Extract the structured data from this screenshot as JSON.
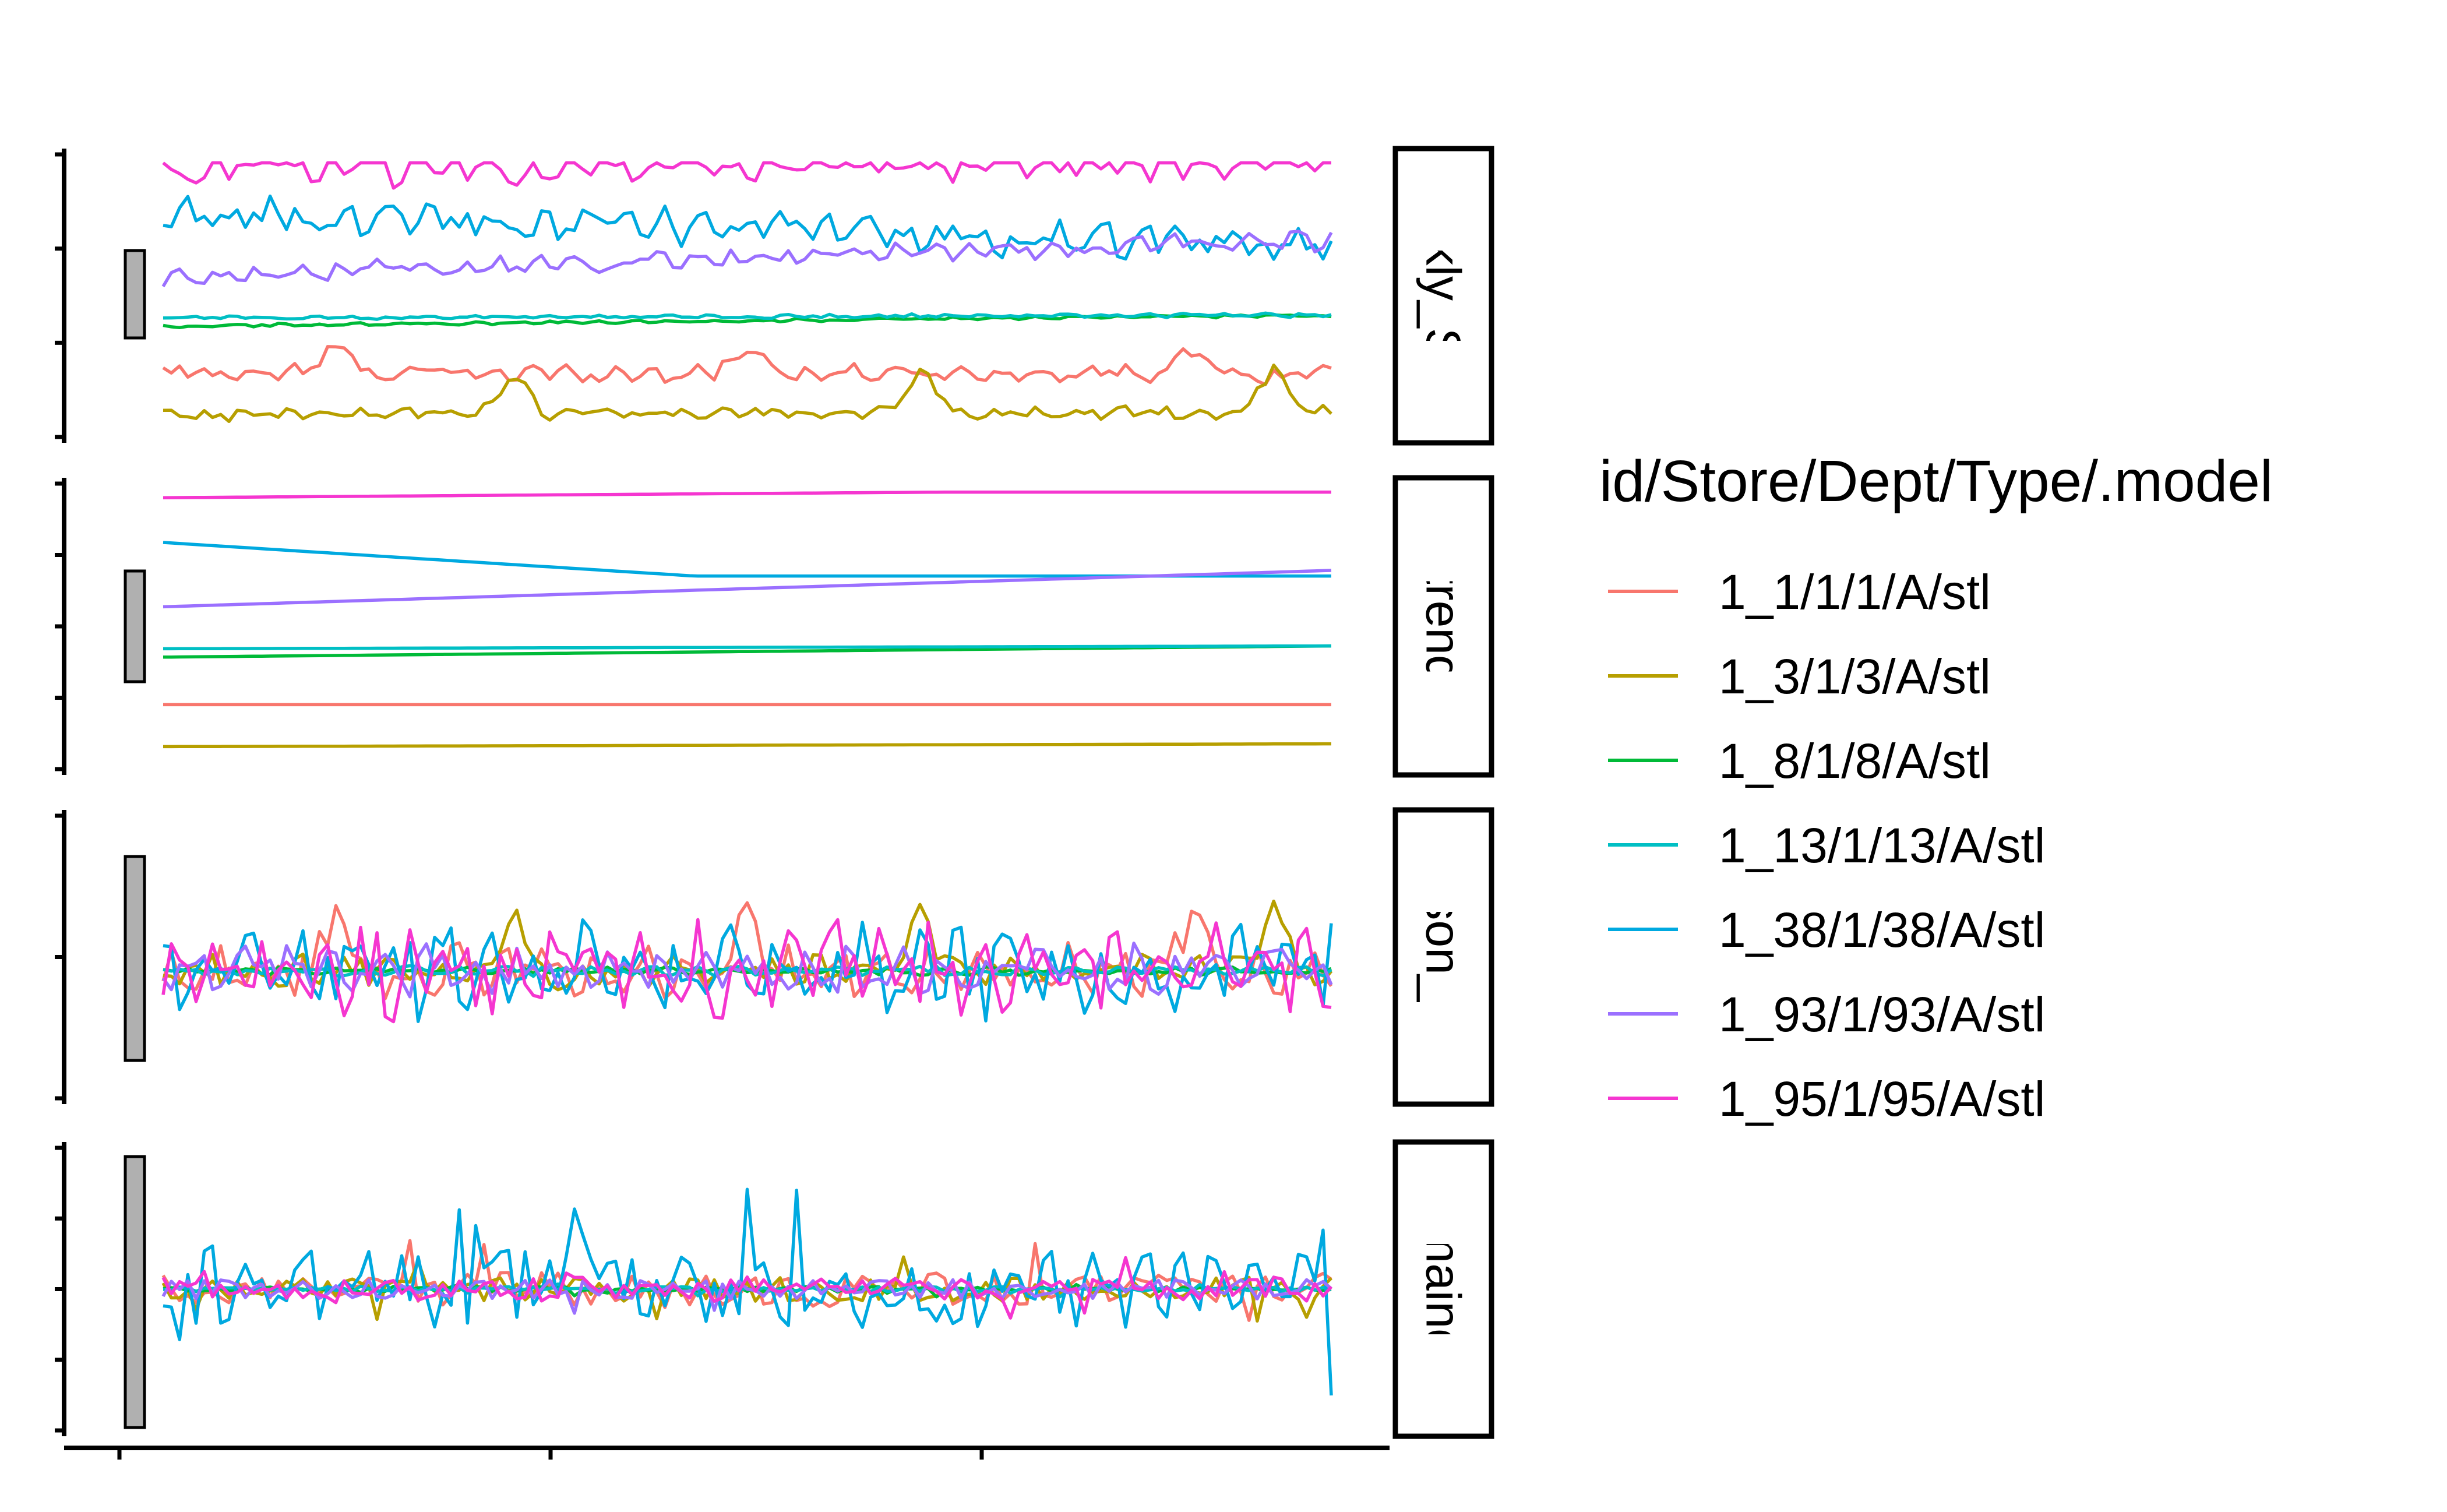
{
  "chart_data": {
    "type": "line",
    "title": "",
    "xlabel": "",
    "ylabel": "",
    "facets": [
      "Weekly_Sales",
      "trend",
      "season_year",
      "remainder"
    ],
    "facet_strip_labels": [
      "Weekly_Sales",
      "trend",
      "season_year",
      "remainder"
    ],
    "legend_title": "id/Store/Dept/Type/.model",
    "legend_position": "right",
    "grid": false,
    "n_points": 143,
    "series": [
      {
        "name": "1_1/1/1/A/stl",
        "color": "#F8766D",
        "level": 0.22,
        "trend": [
          0.22,
          0.22
        ],
        "season_amp": 0.3,
        "season_peaks": [
          0.15,
          0.5,
          0.88
        ],
        "remainder_amp": 0.35
      },
      {
        "name": "1_3/1/3/A/stl",
        "color": "#B79F00",
        "level": 0.07,
        "trend": [
          0.07,
          0.08
        ],
        "season_amp": 0.2,
        "season_peaks": [
          0.3,
          0.65,
          0.95
        ],
        "remainder_amp": 0.25
      },
      {
        "name": "1_8/1/8/A/stl",
        "color": "#00BA38",
        "level": 0.39,
        "trend": [
          0.39,
          0.43
        ],
        "season_amp": 0.05,
        "season_peaks": [],
        "remainder_amp": 0.05
      },
      {
        "name": "1_13/1/13/A/stl",
        "color": "#00BFC4",
        "level": 0.41,
        "trend": [
          0.42,
          0.43
        ],
        "season_amp": 0.06,
        "season_peaks": [],
        "remainder_amp": 0.05
      },
      {
        "name": "1_38/1/38/A/stl",
        "color": "#00A9E0",
        "level": 0.78,
        "trend": [
          0.8,
          0.68
        ],
        "season_amp": 0.55,
        "season_peaks": [],
        "remainder_amp": 0.8
      },
      {
        "name": "1_93/1/93/A/stl",
        "color": "#9B70FF",
        "level": 0.57,
        "trend": [
          0.57,
          0.7
        ],
        "season_amp": 0.3,
        "season_peaks": [],
        "remainder_amp": 0.2
      },
      {
        "name": "1_95/1/95/A/stl",
        "color": "#F536D0",
        "level": 0.96,
        "trend": [
          0.96,
          0.99
        ],
        "season_amp": 0.55,
        "season_peaks": [],
        "remainder_amp": 0.25
      }
    ]
  }
}
